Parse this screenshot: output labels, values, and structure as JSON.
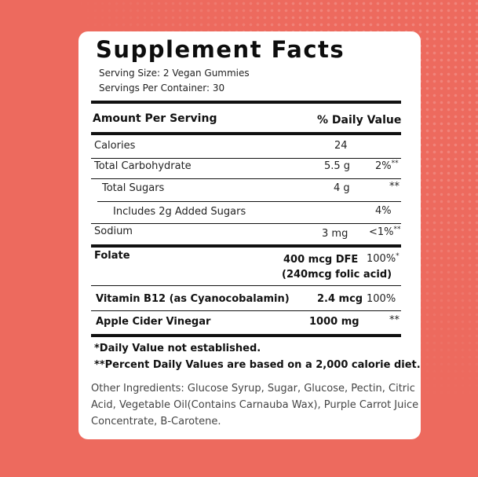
{
  "label": {
    "title": "Supplement Facts",
    "serving_size": "Serving Size: 2 Vegan Gummies",
    "servings_per_container": "Servings Per Container: 30",
    "header_amount": "Amount Per Serving",
    "header_dv": "% Daily Value"
  },
  "rows": [
    {
      "name": "Calories",
      "amount": "24",
      "dv": "",
      "dv_mark": ""
    },
    {
      "name": "Total Carbohydrate",
      "amount": "5.5 g",
      "dv": "2%",
      "dv_mark": "**"
    },
    {
      "name": "Total Sugars",
      "amount": "4 g",
      "dv": "**",
      "dv_mark": ""
    },
    {
      "name": "Includes 2g Added Sugars",
      "amount": "",
      "dv": "4%",
      "dv_mark": ""
    },
    {
      "name": "Sodium",
      "amount": "3 mg",
      "dv": "<1%",
      "dv_mark": "**"
    },
    {
      "name": "Folate",
      "amount": "400 mcg DFE",
      "amount_line2": "(240mcg folic acid)",
      "dv": "100%",
      "dv_mark": "*"
    },
    {
      "name": "Vitamin B12 (as Cyanocobalamin)",
      "amount": "2.4 mcg",
      "dv": "100%",
      "dv_mark": ""
    },
    {
      "name": "Apple Cider Vinegar",
      "amount": "1000 mg",
      "dv": "**",
      "dv_mark": ""
    }
  ],
  "footnotes": {
    "note1": "*Daily Value not established.",
    "note2": "**Percent Daily Values are based on a 2,000 calorie diet."
  },
  "other_ingredients": "Other Ingredients: Glucose Syrup, Sugar, Glucose, Pectin, Citric Acid, Vegetable Oil(Contains Carnauba Wax), Purple Carrot Juice Concentrate, B-Carotene."
}
